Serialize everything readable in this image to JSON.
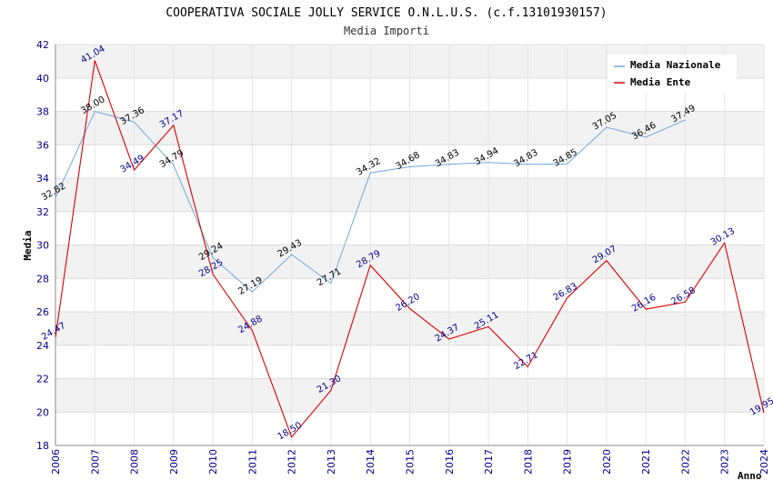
{
  "chart_data": {
    "type": "line",
    "title": "COOPERATIVA SOCIALE JOLLY SERVICE O.N.L.U.S. (c.f.13101930157)",
    "subtitle": "Media Importi",
    "xlabel": "Anno",
    "ylabel": "Media",
    "ylim": [
      18,
      42
    ],
    "yticks": [
      "18",
      "20",
      "22",
      "24",
      "26",
      "28",
      "30",
      "32",
      "34",
      "36",
      "38",
      "40",
      "42"
    ],
    "categories": [
      "2006",
      "2007",
      "2008",
      "2009",
      "2010",
      "2011",
      "2012",
      "2013",
      "2014",
      "2015",
      "2016",
      "2017",
      "2018",
      "2019",
      "2020",
      "2021",
      "2022",
      "2023",
      "2024"
    ],
    "legend_position": "top-right",
    "series": [
      {
        "name": "Media Nazionale",
        "color": "#6fa8dc",
        "values": [
          32.82,
          38.0,
          37.36,
          34.79,
          29.24,
          27.19,
          29.43,
          27.71,
          34.32,
          34.68,
          34.83,
          34.94,
          34.83,
          34.85,
          37.05,
          36.46,
          37.49,
          null,
          null
        ],
        "labels": [
          "32.82",
          "38.00",
          "37.36",
          "34.79",
          "29.24",
          "27.19",
          "29.43",
          "27.71",
          "34.32",
          "34.68",
          "34.83",
          "34.94",
          "34.83",
          "34.85",
          "37.05",
          "36.46",
          "37.49",
          null,
          null
        ]
      },
      {
        "name": "Media Ente",
        "color": "#dd0000",
        "values": [
          24.47,
          41.04,
          34.49,
          37.17,
          28.25,
          24.88,
          18.5,
          21.3,
          28.79,
          26.2,
          24.37,
          25.11,
          22.71,
          26.83,
          29.07,
          26.16,
          26.58,
          30.13,
          19.95
        ],
        "labels": [
          "24.47",
          "41.04",
          "34.49",
          "37.17",
          "28.25",
          "24.88",
          "18.50",
          "21.30",
          "28.79",
          "26.20",
          "24.37",
          "25.11",
          "22.71",
          "26.83",
          "29.07",
          "26.16",
          "26.58",
          "30.13",
          "19.95"
        ]
      }
    ]
  }
}
